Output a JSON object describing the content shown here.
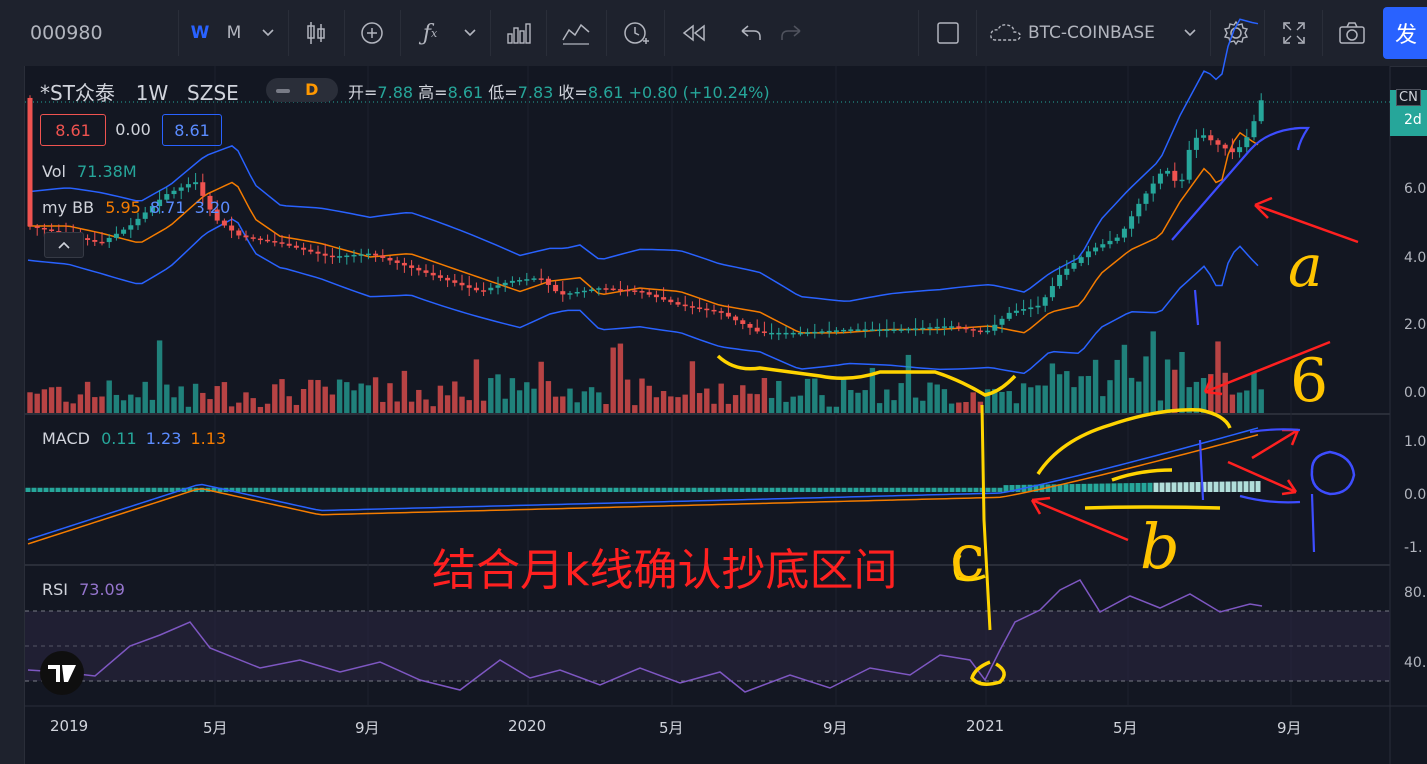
{
  "toolbar": {
    "symbol": "000980",
    "interval_w": "W",
    "interval_m": "M",
    "compare_symbol": "BTC-COINBASE",
    "publish": "发"
  },
  "header": {
    "name": "*ST众泰",
    "interval": "1W",
    "exchange": "SZSE",
    "mode_badge": "D",
    "open_label": "开=",
    "open": "7.88",
    "high_label": "高=",
    "high": "8.61",
    "low_label": "低=",
    "low": "7.83",
    "close_label": "收=",
    "close": "8.61",
    "change": "+0.80 (+10.24%)",
    "bid": "8.61",
    "spread": "0.00",
    "ask": "8.61"
  },
  "indicators": {
    "vol_label": "Vol",
    "vol_value": "71.38M",
    "bb_label": "my BB",
    "bb_v1": "5.95",
    "bb_v2": "8.71",
    "bb_v3": "3.20",
    "macd_label": "MACD",
    "macd_v1": "0.11",
    "macd_v2": "1.23",
    "macd_v3": "1.13",
    "rsi_label": "RSI",
    "rsi_value": "73.09"
  },
  "price_axis": {
    "badge_top": "CN",
    "badge_price": "8.6",
    "badge_time": "2d",
    "ticks": [
      "6.0",
      "4.0",
      "2.0",
      "0.0"
    ],
    "macd_ticks": [
      "1.0",
      "0.0",
      "-1."
    ],
    "rsi_ticks": [
      "80.",
      "40."
    ]
  },
  "time_axis": [
    "2019",
    "5月",
    "9月",
    "2020",
    "5月",
    "9月",
    "2021",
    "5月",
    "9月"
  ],
  "annotation": {
    "text": "结合月k线确认抄底区间",
    "letter_a": "a",
    "letter_6": "6",
    "letter_b": "b",
    "letter_c": "c"
  },
  "colors": {
    "up": "#26a69a",
    "down": "#ef5350",
    "bb_mid": "#f57c00",
    "bb_band": "#2962ff",
    "rsi": "#7e57c2",
    "accent": "#2962ff",
    "annotation_red": "#ff2020",
    "annotation_yellow": "#ffd400"
  }
}
